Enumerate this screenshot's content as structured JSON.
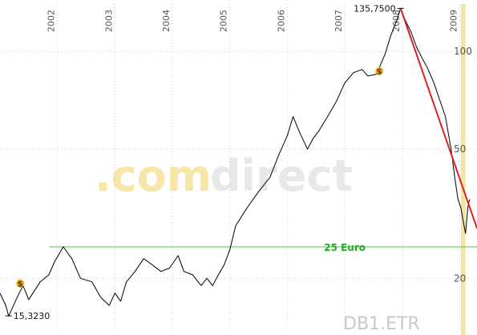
{
  "chart_data": {
    "type": "line",
    "x_range": [
      2001.0,
      2009.3
    ],
    "y_scale": "log",
    "y_range": [
      14,
      140
    ],
    "x_ticks": [
      "2002",
      "2003",
      "2004",
      "2005",
      "2006",
      "2007",
      "2008",
      "2009"
    ],
    "x_tick_values": [
      2002,
      2003,
      2004,
      2005,
      2006,
      2007,
      2008,
      2009
    ],
    "y_ticks": [
      {
        "label": "100",
        "value": 100
      },
      {
        "label": "50",
        "value": 50
      },
      {
        "label": "20",
        "value": 20
      }
    ],
    "grid": true,
    "series": [
      {
        "color": "#000000",
        "points": [
          [
            2001.0,
            18.0
          ],
          [
            2001.1,
            16.5
          ],
          [
            2001.15,
            15.3
          ],
          [
            2001.3,
            17.5
          ],
          [
            2001.4,
            19.0
          ],
          [
            2001.5,
            17.2
          ],
          [
            2001.7,
            19.5
          ],
          [
            2001.85,
            20.5
          ],
          [
            2001.95,
            22.5
          ],
          [
            2002.1,
            25.0
          ],
          [
            2002.25,
            23.0
          ],
          [
            2002.4,
            20.0
          ],
          [
            2002.6,
            19.5
          ],
          [
            2002.75,
            17.5
          ],
          [
            2002.9,
            16.5
          ],
          [
            2003.0,
            18.0
          ],
          [
            2003.1,
            17.0
          ],
          [
            2003.2,
            19.5
          ],
          [
            2003.35,
            21.0
          ],
          [
            2003.5,
            23.0
          ],
          [
            2003.65,
            22.0
          ],
          [
            2003.8,
            21.0
          ],
          [
            2003.95,
            21.5
          ],
          [
            2004.1,
            23.5
          ],
          [
            2004.2,
            21.0
          ],
          [
            2004.35,
            20.5
          ],
          [
            2004.5,
            19.0
          ],
          [
            2004.6,
            20.0
          ],
          [
            2004.7,
            19.0
          ],
          [
            2004.8,
            20.5
          ],
          [
            2004.9,
            22.0
          ],
          [
            2005.0,
            24.5
          ],
          [
            2005.1,
            29.0
          ],
          [
            2005.3,
            33.0
          ],
          [
            2005.5,
            37.0
          ],
          [
            2005.7,
            41.0
          ],
          [
            2005.85,
            48.0
          ],
          [
            2006.0,
            55.0
          ],
          [
            2006.1,
            63.0
          ],
          [
            2006.2,
            57.0
          ],
          [
            2006.35,
            50.0
          ],
          [
            2006.45,
            54.0
          ],
          [
            2006.55,
            57.0
          ],
          [
            2006.7,
            63.0
          ],
          [
            2006.85,
            70.0
          ],
          [
            2007.0,
            80.0
          ],
          [
            2007.15,
            86.0
          ],
          [
            2007.3,
            88.0
          ],
          [
            2007.4,
            84.0
          ],
          [
            2007.55,
            85.0
          ],
          [
            2007.7,
            98.0
          ],
          [
            2007.8,
            112.0
          ],
          [
            2007.9,
            124.0
          ],
          [
            2007.97,
            135.75
          ],
          [
            2008.05,
            125.0
          ],
          [
            2008.15,
            115.0
          ],
          [
            2008.25,
            103.0
          ],
          [
            2008.35,
            95.0
          ],
          [
            2008.45,
            88.0
          ],
          [
            2008.55,
            80.0
          ],
          [
            2008.65,
            71.0
          ],
          [
            2008.75,
            63.0
          ],
          [
            2008.85,
            50.0
          ],
          [
            2008.92,
            40.0
          ],
          [
            2008.97,
            35.0
          ],
          [
            2009.02,
            33.0
          ],
          [
            2009.06,
            30.0
          ],
          [
            2009.1,
            27.5
          ],
          [
            2009.14,
            33.0
          ],
          [
            2009.17,
            35.0
          ]
        ]
      }
    ],
    "trendline": {
      "color": "#dd2222",
      "from": [
        2007.97,
        135.75
      ],
      "to": [
        2009.3,
        28.5
      ]
    },
    "support_line": {
      "color": "#44cc44",
      "value": 25,
      "label": "25 Euro"
    },
    "highlight_band": {
      "color": "#f1e08a",
      "x_from": 2009.02,
      "x_to": 2009.1
    },
    "annotations": [
      {
        "text": "135,7500",
        "x": 2007.97,
        "y": 135.75,
        "kind": "high"
      },
      {
        "text": "15,3230",
        "x": 2001.15,
        "y": 15.323,
        "kind": "low"
      }
    ],
    "dividend_markers": [
      {
        "x": 2001.35,
        "y": 19.3,
        "symbol": "$"
      },
      {
        "x": 2007.6,
        "y": 87.0,
        "symbol": "$"
      }
    ],
    "watermark": {
      "part1": ".com",
      "part2": "direct"
    },
    "ticker": "DB1.ETR"
  }
}
